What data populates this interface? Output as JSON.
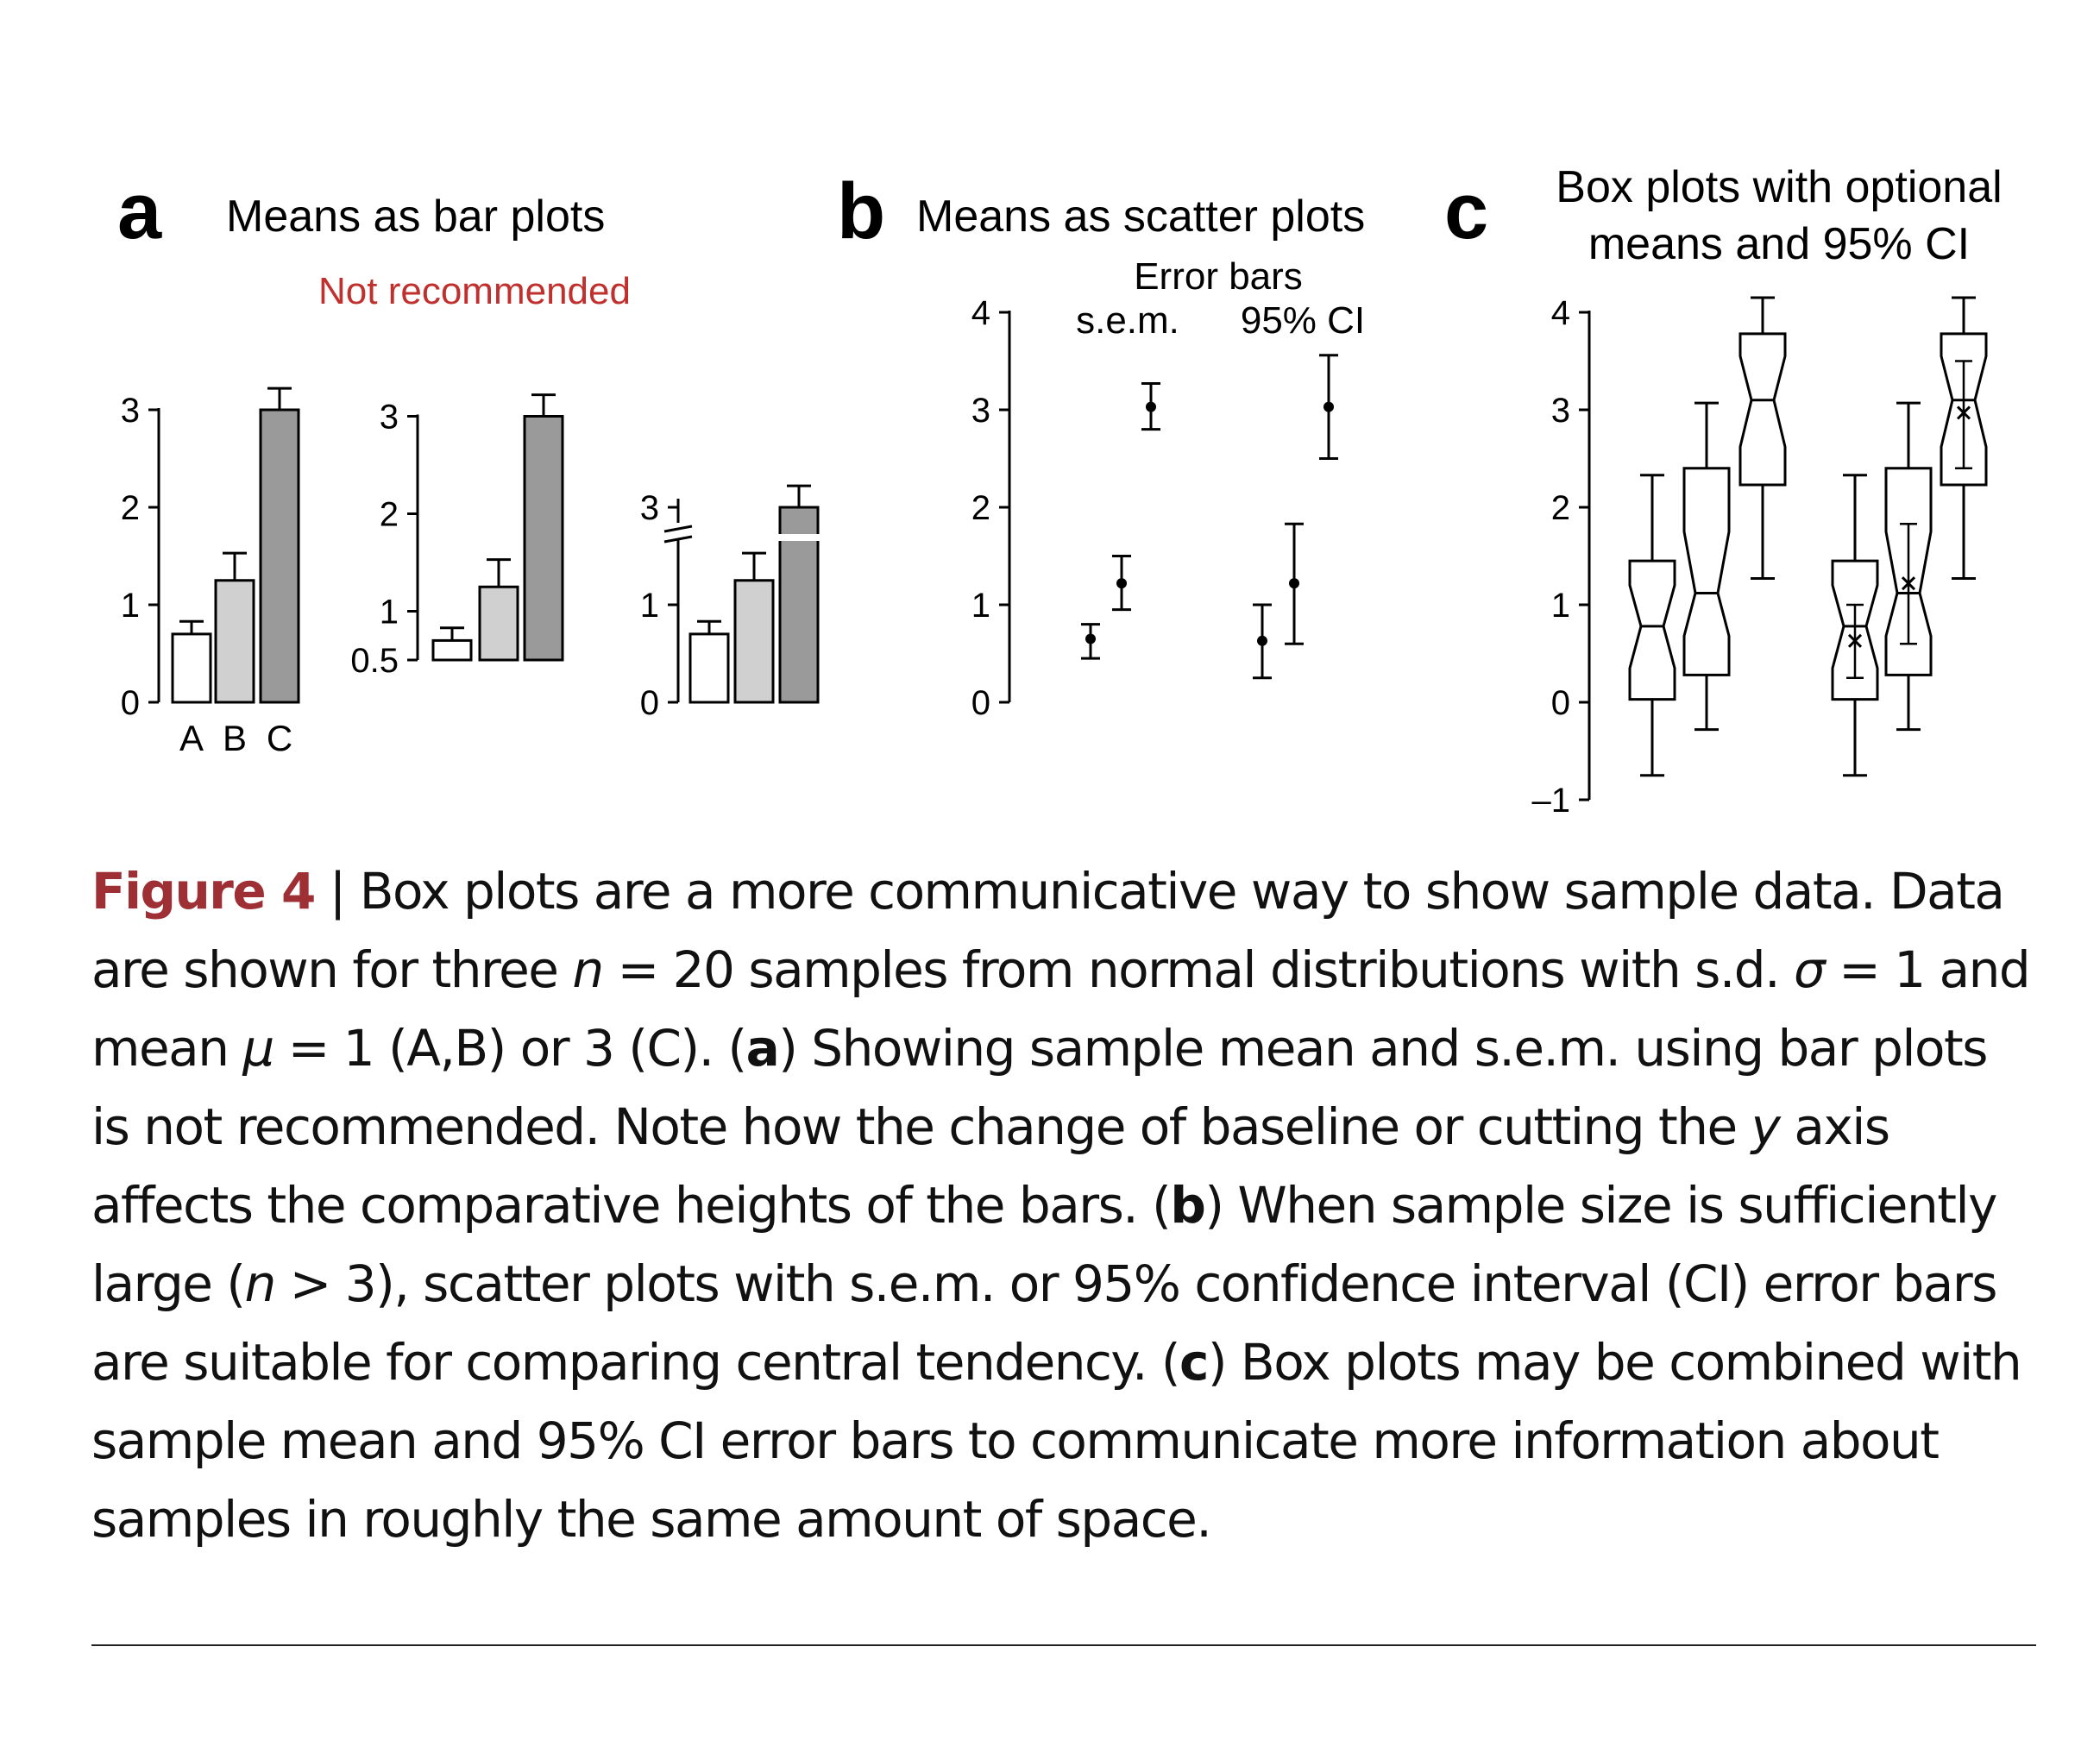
{
  "panels": {
    "a": {
      "letter": "a",
      "title": "Means as bar plots",
      "note": "Not recommended"
    },
    "b": {
      "letter": "b",
      "title": "Means as scatter plots",
      "sub_title": "Error bars",
      "sub_sem": "s.e.m.",
      "sub_ci": "95% CI"
    },
    "c": {
      "letter": "c",
      "title_line1": "Box plots with optional",
      "title_line2": "means and 95% CI"
    }
  },
  "chart_data": [
    {
      "panel": "a1",
      "type": "bar",
      "categories": [
        "A",
        "B",
        "C"
      ],
      "values": [
        0.7,
        1.25,
        3.0
      ],
      "sem": [
        0.13,
        0.28,
        0.22
      ],
      "colors": [
        "#ffffff",
        "#d0d0d0",
        "#9a9a9a"
      ],
      "ylim": [
        0,
        3
      ],
      "yticks": [
        "0",
        "1",
        "2",
        "3"
      ],
      "baseline": 0
    },
    {
      "panel": "a2",
      "type": "bar",
      "categories": [
        "A",
        "B",
        "C"
      ],
      "values": [
        0.7,
        1.25,
        3.0
      ],
      "sem": [
        0.13,
        0.28,
        0.22
      ],
      "colors": [
        "#ffffff",
        "#d0d0d0",
        "#9a9a9a"
      ],
      "ylim": [
        0.5,
        3
      ],
      "yticks": [
        "0.5",
        "1",
        "2",
        "3"
      ],
      "baseline": 0.5
    },
    {
      "panel": "a3",
      "type": "bar",
      "axis_break": true,
      "categories": [
        "A",
        "B",
        "C"
      ],
      "values": [
        0.7,
        1.25,
        3.0
      ],
      "sem": [
        0.13,
        0.28,
        0.22
      ],
      "colors": [
        "#ffffff",
        "#d0d0d0",
        "#9a9a9a"
      ],
      "yticks": [
        "0",
        "1",
        "3"
      ],
      "baseline": 0
    },
    {
      "panel": "b",
      "type": "scatter",
      "ylim": [
        0,
        4
      ],
      "yticks": [
        "0",
        "1",
        "2",
        "3",
        "4"
      ],
      "series": [
        {
          "name": "s.e.m.",
          "points": [
            {
              "mean": 0.65,
              "low": 0.45,
              "high": 0.8
            },
            {
              "mean": 1.22,
              "low": 0.95,
              "high": 1.5
            },
            {
              "mean": 3.03,
              "low": 2.8,
              "high": 3.27
            }
          ]
        },
        {
          "name": "95% CI",
          "points": [
            {
              "mean": 0.63,
              "low": 0.25,
              "high": 1.0
            },
            {
              "mean": 1.22,
              "low": 0.6,
              "high": 1.83
            },
            {
              "mean": 3.03,
              "low": 2.5,
              "high": 3.56
            }
          ]
        }
      ]
    },
    {
      "panel": "c",
      "type": "box",
      "ylim": [
        -1,
        4
      ],
      "yticks": [
        "–1",
        "0",
        "1",
        "2",
        "3",
        "4"
      ],
      "groups": [
        {
          "boxes": [
            {
              "min": -0.75,
              "q1": 0.03,
              "median": 0.78,
              "q3": 1.45,
              "max": 2.33,
              "notch_low": 0.35,
              "notch_high": 1.2
            },
            {
              "min": -0.28,
              "q1": 0.28,
              "median": 1.12,
              "q3": 2.4,
              "max": 3.07,
              "notch_low": 0.68,
              "notch_high": 1.75
            },
            {
              "min": 1.27,
              "q1": 2.23,
              "median": 3.1,
              "q3": 3.78,
              "max": 4.15,
              "notch_low": 2.62,
              "notch_high": 3.55
            }
          ]
        },
        {
          "boxes": [
            {
              "min": -0.75,
              "q1": 0.03,
              "median": 0.78,
              "q3": 1.45,
              "max": 2.33,
              "notch_low": 0.35,
              "notch_high": 1.2,
              "mean": 0.63,
              "ci_low": 0.25,
              "ci_high": 1.0
            },
            {
              "min": -0.28,
              "q1": 0.28,
              "median": 1.12,
              "q3": 2.4,
              "max": 3.07,
              "notch_low": 0.68,
              "notch_high": 1.75,
              "mean": 1.22,
              "ci_low": 0.6,
              "ci_high": 1.83
            },
            {
              "min": 1.27,
              "q1": 2.23,
              "median": 3.1,
              "q3": 3.78,
              "max": 4.15,
              "notch_low": 2.62,
              "notch_high": 3.55,
              "mean": 2.97,
              "ci_low": 2.4,
              "ci_high": 3.5
            }
          ]
        }
      ]
    }
  ],
  "caption": {
    "figure_label": "Figure 4",
    "sep": " | ",
    "t1": "Box plots are a more communicative way to show sample data. Data are shown for three ",
    "n1": "n",
    "t2": " = 20 samples from normal distributions with s.d. ",
    "sigma": "σ",
    "t3": " = 1 and mean ",
    "mu": "μ",
    "t4": " = 1 (A,B) or 3 (C). (",
    "a": "a",
    "t5": ") Showing sample mean and s.e.m. using bar plots is not recommended. Note how the change of baseline or cutting the ",
    "y": "y",
    "t6": " axis affects the comparative heights of the bars. (",
    "b": "b",
    "t7": ") When sample size is sufficiently large (",
    "n2": "n",
    "t8": " > 3), scatter plots with s.e.m. or 95% confidence interval (CI) error bars are suitable for comparing central tendency. (",
    "c": "c",
    "t9": ") Box plots may be combined with sample mean and 95% CI error bars to communicate more information about samples in roughly the same amount of space."
  }
}
